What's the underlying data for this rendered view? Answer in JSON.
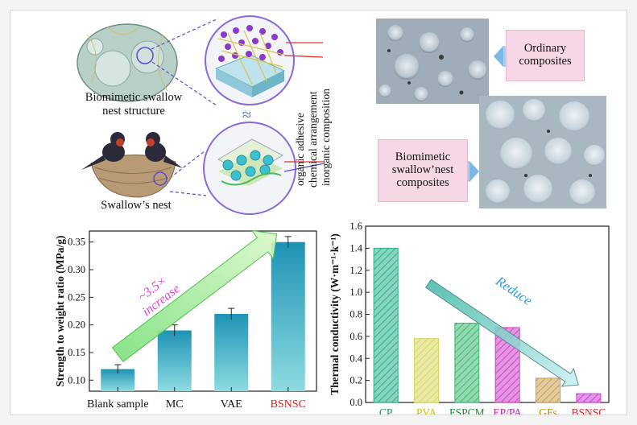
{
  "top": {
    "left_label": "Biomimetic swallow nest structure",
    "left_label_line1": "Biomimetic swallow",
    "left_label_line2": "nest structure",
    "nest_label": "Swallow’s nest",
    "vertical_labels": [
      "organic adhesive",
      "chemical arrangement",
      "inorganic composition"
    ],
    "wave_symbol": "≈",
    "ordinary_label_line1": "Ordinary",
    "ordinary_label_line2": "composites",
    "biomimetic_label_line1": "Biomimetic",
    "biomimetic_label_line2": "swallow’nest",
    "biomimetic_label_line3": "composites"
  },
  "chart_data": [
    {
      "type": "bar",
      "categories": [
        "Blank sample",
        "MC",
        "VAE",
        "BSNSC"
      ],
      "values": [
        0.12,
        0.19,
        0.22,
        0.35
      ],
      "errors": [
        0.008,
        0.01,
        0.01,
        0.01
      ],
      "ylabel": "Strength to weight ratio (MPa/g)",
      "ylim": [
        0.08,
        0.37
      ],
      "yticks": [
        0.1,
        0.15,
        0.2,
        0.25,
        0.3,
        0.35
      ],
      "annotation": "~3.5× increase",
      "annotation_line1": "~3.5×",
      "annotation_line2": "increase",
      "bar_color": "#2aa8b8",
      "highlight_category_color": "#e02020"
    },
    {
      "type": "bar",
      "categories": [
        "CP",
        "PVA",
        "FSPCM",
        "EP/PA",
        "GFs",
        "BSNSC"
      ],
      "values": [
        1.4,
        0.58,
        0.72,
        0.68,
        0.22,
        0.08
      ],
      "ylabel": "Thermal conductivity (W·m⁻¹·k⁻¹)",
      "ylim": [
        0.0,
        1.6
      ],
      "yticks": [
        0.0,
        0.2,
        0.4,
        0.6,
        0.8,
        1.0,
        1.2,
        1.4,
        1.6
      ],
      "annotation": "Reduce",
      "bar_colors": [
        "#28b08a",
        "#d8d860",
        "#3cb870",
        "#d040c8",
        "#c8a050",
        "#d040d8"
      ],
      "label_colors": [
        "#1a9a5a",
        "#c8c000",
        "#1a8a3a",
        "#c020b0",
        "#c08a00",
        "#e02020"
      ]
    }
  ]
}
